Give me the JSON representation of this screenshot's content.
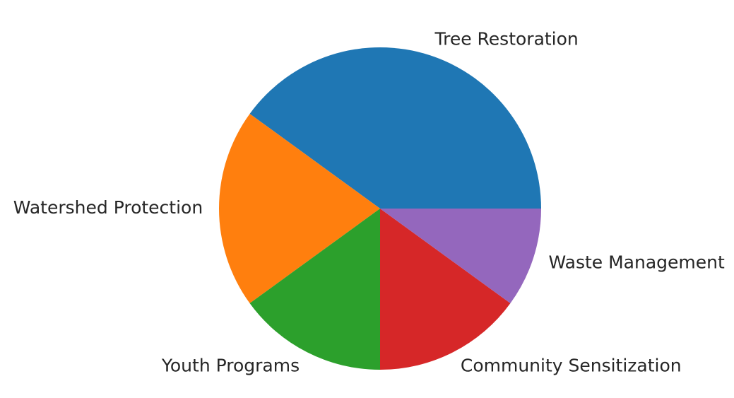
{
  "chart_data": {
    "type": "pie",
    "title": "",
    "slices": [
      {
        "label": "Tree Restoration",
        "value": 40,
        "color": "#1f77b4"
      },
      {
        "label": "Watershed Protection",
        "value": 20,
        "color": "#ff7f0e"
      },
      {
        "label": "Youth Programs",
        "value": 15,
        "color": "#2ca02c"
      },
      {
        "label": "Community Sensitization",
        "value": 15,
        "color": "#d62728"
      },
      {
        "label": "Waste Management",
        "value": 10,
        "color": "#9467bd"
      }
    ],
    "start_angle_deg": 0,
    "direction": "counterclockwise",
    "legend": "none",
    "percent_labels": false
  }
}
